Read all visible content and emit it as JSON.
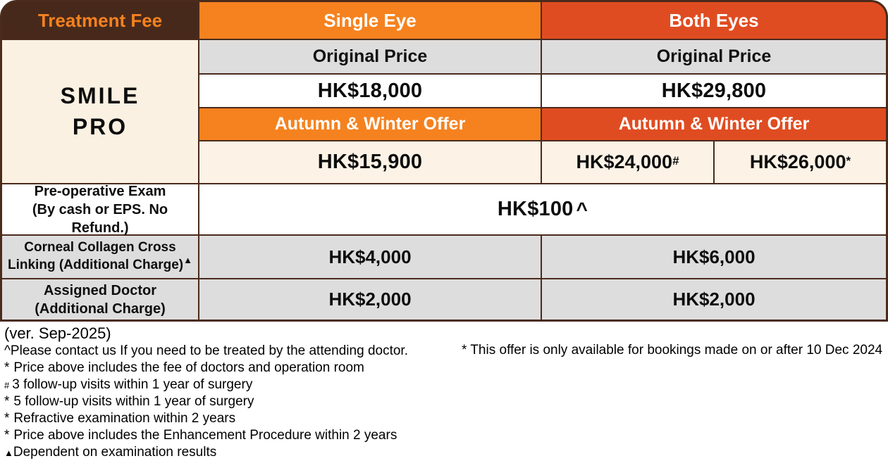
{
  "table": {
    "header": {
      "col1": "Treatment Fee",
      "col2": "Single Eye",
      "col3": "Both Eyes"
    },
    "product": {
      "line1": "SMILE",
      "line2": "PRO"
    },
    "original_price_label_single": "Original Price",
    "original_price_label_both": "Original Price",
    "original_price_single": "HK$18,000",
    "original_price_both": "HK$29,800",
    "offer_label_single": "Autumn & Winter Offer",
    "offer_label_both": "Autumn & Winter Offer",
    "offer_price_single": "HK$15,900",
    "offer_price_both_1": "HK$24,000",
    "offer_price_both_1_marker": "#",
    "offer_price_both_2": "HK$26,000",
    "offer_price_both_2_marker": "*",
    "preop": {
      "label_line1": "Pre-operative Exam",
      "label_line2": "(By cash or EPS. No Refund.)",
      "value": "HK$100",
      "marker": "^"
    },
    "corneal": {
      "label_line1": "Corneal Collagen Cross",
      "label_line2": "Linking (Additional Charge)",
      "marker": "▲",
      "single": "HK$4,000",
      "both": "HK$6,000"
    },
    "assigned": {
      "label_line1": "Assigned Doctor",
      "label_line2": "(Additional Charge)",
      "single": "HK$2,000",
      "both": "HK$2,000"
    }
  },
  "footnotes": {
    "version": "(ver. Sep-2025)",
    "left": [
      {
        "marker": "^",
        "text": "Please contact us If you need to be treated by the attending doctor."
      },
      {
        "marker": "*",
        "text": "Price above includes the fee of doctors and operation room"
      },
      {
        "marker": "#",
        "text": "3 follow-up visits within 1 year of surgery"
      },
      {
        "marker": "*",
        "text": "5 follow-up visits within 1 year of surgery"
      },
      {
        "marker": "*",
        "text": "Refractive examination within 2 years"
      },
      {
        "marker": "*",
        "text": "Price above includes the Enhancement Procedure within 2 years"
      },
      {
        "marker": "▲",
        "text": "Dependent on examination results"
      }
    ],
    "right_note": "* This offer is only available for bookings made on or after 10 Dec 2024"
  },
  "colors": {
    "header_brown": "#47291B",
    "accent_orange": "#F5821F",
    "accent_red": "#E04C21",
    "cream": "#FBF1E2",
    "gray": "#DEDDDD",
    "border_brown": "#4A2B1C"
  }
}
